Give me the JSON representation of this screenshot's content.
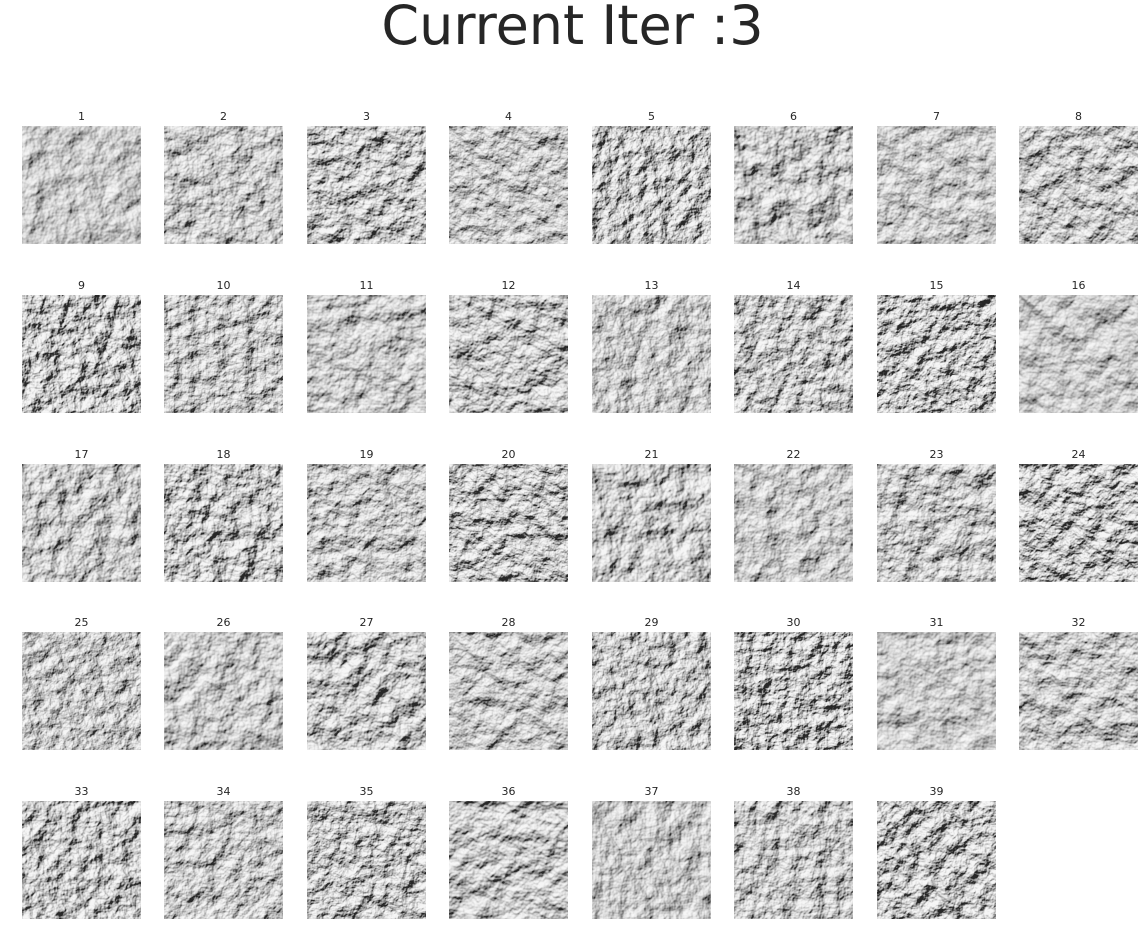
{
  "figure": {
    "title": "Current Iter :3",
    "colormap": "gray",
    "grid": {
      "rows": 5,
      "cols": 8
    },
    "tiles": [
      {
        "label": "1"
      },
      {
        "label": "2"
      },
      {
        "label": "3"
      },
      {
        "label": "4"
      },
      {
        "label": "5"
      },
      {
        "label": "6"
      },
      {
        "label": "7"
      },
      {
        "label": "8"
      },
      {
        "label": "9"
      },
      {
        "label": "10"
      },
      {
        "label": "11"
      },
      {
        "label": "12"
      },
      {
        "label": "13"
      },
      {
        "label": "14"
      },
      {
        "label": "15"
      },
      {
        "label": "16"
      },
      {
        "label": "17"
      },
      {
        "label": "18"
      },
      {
        "label": "19"
      },
      {
        "label": "20"
      },
      {
        "label": "21"
      },
      {
        "label": "22"
      },
      {
        "label": "23"
      },
      {
        "label": "24"
      },
      {
        "label": "25"
      },
      {
        "label": "26"
      },
      {
        "label": "27"
      },
      {
        "label": "28"
      },
      {
        "label": "29"
      },
      {
        "label": "30"
      },
      {
        "label": "31"
      },
      {
        "label": "32"
      },
      {
        "label": "33"
      },
      {
        "label": "34"
      },
      {
        "label": "35"
      },
      {
        "label": "36"
      },
      {
        "label": "37"
      },
      {
        "label": "38"
      },
      {
        "label": "39"
      }
    ]
  }
}
